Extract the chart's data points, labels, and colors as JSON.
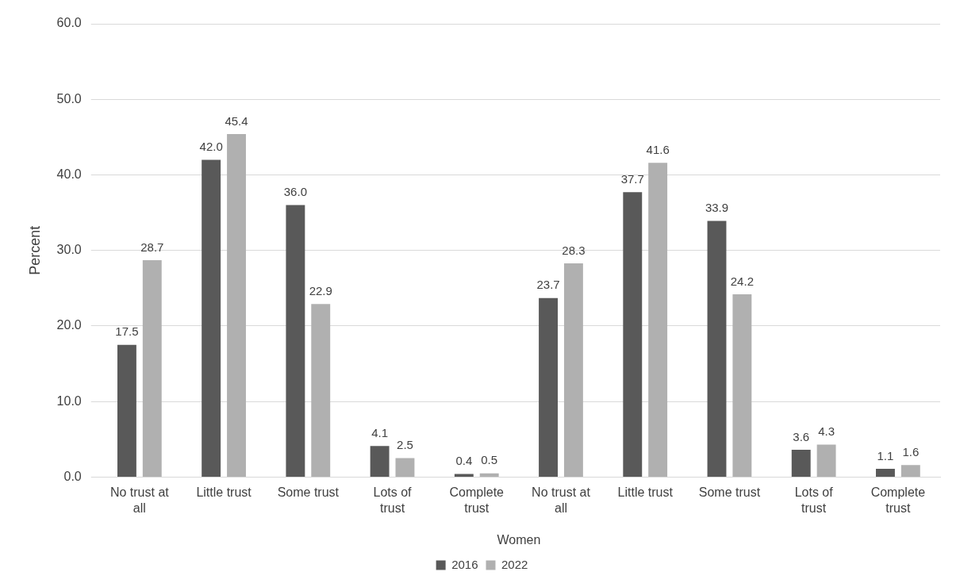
{
  "chart_data": {
    "type": "bar",
    "ylabel": "Percent",
    "xlabel": "Women",
    "categories": [
      "No trust at all",
      "Little trust",
      "Some trust",
      "Lots of trust",
      "Complete trust",
      "No trust at all",
      "Little trust",
      "Some trust",
      "Lots of trust",
      "Complete trust"
    ],
    "series": [
      {
        "name": "2016",
        "color": "#595959",
        "values": [
          17.5,
          42.0,
          36.0,
          4.1,
          0.4,
          23.7,
          37.7,
          33.9,
          3.6,
          1.1
        ],
        "value_labels": [
          "17.5",
          "42.0",
          "36.0",
          "4.1",
          "0.4",
          "23.7",
          "37.7",
          "33.9",
          "3.6",
          "1.1"
        ]
      },
      {
        "name": "2022",
        "color": "#b0b0b0",
        "values": [
          28.7,
          45.4,
          22.9,
          2.5,
          0.5,
          28.3,
          41.6,
          24.2,
          4.3,
          1.6
        ],
        "value_labels": [
          "28.7",
          "45.4",
          "22.9",
          "2.5",
          "0.5",
          "28.3",
          "41.6",
          "24.2",
          "4.3",
          "1.6"
        ]
      }
    ],
    "ylim": [
      0,
      60
    ],
    "yticks": [
      {
        "value": 0,
        "label": "0.0"
      },
      {
        "value": 10,
        "label": "10.0"
      },
      {
        "value": 20,
        "label": "20.0"
      },
      {
        "value": 30,
        "label": "30.0"
      },
      {
        "value": 40,
        "label": "40.0"
      },
      {
        "value": 50,
        "label": "50.0"
      },
      {
        "value": 60,
        "label": "60.0"
      }
    ],
    "grid": "y",
    "legend": "bottom"
  }
}
